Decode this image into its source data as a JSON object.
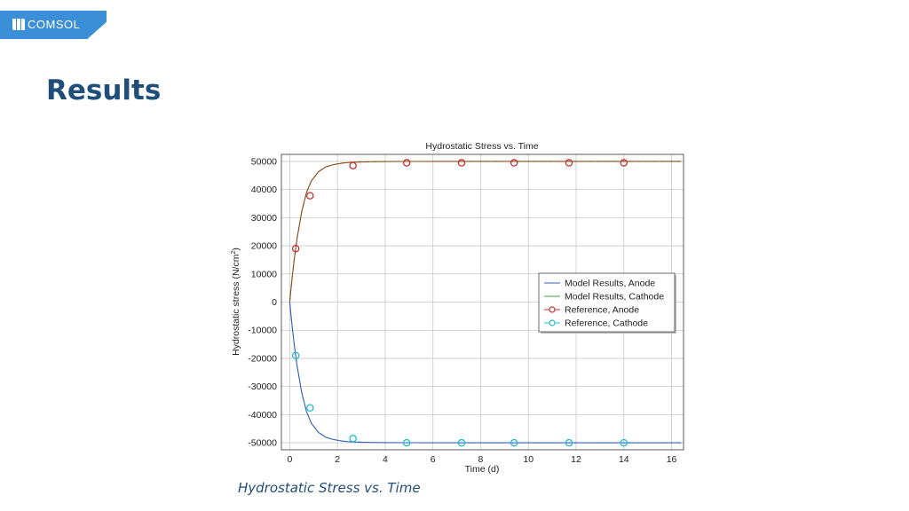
{
  "header": {
    "logo_text": "COMSOL",
    "title": "Results"
  },
  "caption": "Hydrostatic Stress vs. Time",
  "colors": {
    "brand": "#3b8fd6",
    "title": "#1f4e79",
    "model_anode": "#3a5fb0",
    "model_cathode": "#3fa33f",
    "ref_anode": "#c03030",
    "ref_cathode": "#22bcc8",
    "model_line_visible": "#8a4a1a"
  },
  "chart_data": {
    "type": "line",
    "title": "Hydrostatic Stress vs. Time",
    "xlabel": "Time (d)",
    "ylabel_main": "Hydrostatic stress (N/cm",
    "ylabel_sup": "2",
    "ylabel_end": ")",
    "xlim": [
      -0.35,
      16.5
    ],
    "ylim": [
      -52500,
      52500
    ],
    "xticks": [
      0,
      2,
      4,
      6,
      8,
      10,
      12,
      14,
      16
    ],
    "yticks": [
      50000,
      40000,
      30000,
      20000,
      10000,
      0,
      -10000,
      -20000,
      -30000,
      -40000,
      -50000
    ],
    "grid": true,
    "legend_position": "right-center",
    "legend": [
      "Model Results, Anode",
      "Model Results, Cathode",
      "Reference, Anode",
      "Reference, Cathode"
    ],
    "series": [
      {
        "name": "Model Results, Anode",
        "kind": "line",
        "x": [
          0,
          0.05,
          0.1,
          0.2,
          0.3,
          0.5,
          0.7,
          0.9,
          1.2,
          1.5,
          1.8,
          2.2,
          2.6,
          3.0,
          3.5,
          4.0,
          5.0,
          6.0,
          8.0,
          10.0,
          12.0,
          14.0,
          16.4
        ],
        "y": [
          0,
          4500,
          8600,
          16000,
          22300,
          32100,
          38900,
          43000,
          46300,
          48000,
          48800,
          49400,
          49700,
          49800,
          49900,
          49950,
          49980,
          49990,
          50000,
          50000,
          50000,
          50000,
          50000
        ]
      },
      {
        "name": "Model Results, Cathode",
        "kind": "line",
        "x": [
          0,
          0.05,
          0.1,
          0.2,
          0.3,
          0.5,
          0.7,
          0.9,
          1.2,
          1.5,
          1.8,
          2.2,
          2.6,
          3.0,
          3.5,
          4.0,
          5.0,
          6.0,
          8.0,
          10.0,
          12.0,
          14.0,
          16.4
        ],
        "y": [
          0,
          -4500,
          -8600,
          -16000,
          -22300,
          -32100,
          -38900,
          -43000,
          -46300,
          -48000,
          -48800,
          -49400,
          -49700,
          -49800,
          -49900,
          -49950,
          -49980,
          -49990,
          -50000,
          -50000,
          -50000,
          -50000,
          -50000
        ]
      },
      {
        "name": "Reference, Anode",
        "kind": "markers",
        "x": [
          0.25,
          0.85,
          2.65,
          4.9,
          7.2,
          9.4,
          11.7,
          14.0
        ],
        "y": [
          19000,
          37800,
          48500,
          49500,
          49500,
          49500,
          49500,
          49500
        ]
      },
      {
        "name": "Reference, Cathode",
        "kind": "markers",
        "x": [
          0.25,
          0.85,
          2.65,
          4.9,
          7.2,
          9.4,
          11.7,
          14.0
        ],
        "y": [
          -19000,
          -37600,
          -48500,
          -50000,
          -50000,
          -50000,
          -50000,
          -50000
        ]
      }
    ]
  }
}
